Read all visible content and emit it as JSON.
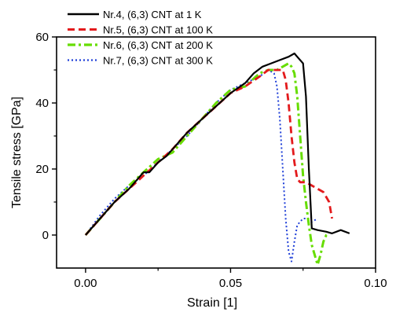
{
  "chart_data": {
    "type": "line",
    "title": "",
    "xlabel": "Strain [1]",
    "ylabel": "Tensile stress [GPa]",
    "xlim": [
      -0.01,
      0.1
    ],
    "ylim": [
      -10,
      60
    ],
    "xticks": [
      0.0,
      0.05,
      0.1
    ],
    "xtick_labels": [
      "0.00",
      "0.05",
      "0.10"
    ],
    "yticks": [
      0,
      20,
      40,
      60
    ],
    "ytick_labels": [
      "0",
      "20",
      "40",
      "60"
    ],
    "grid": false,
    "legend_position": "top",
    "series": [
      {
        "name": "Nr.4, (6,3) CNT at 1 K",
        "color": "#000000",
        "style": "solid",
        "x": [
          0.0,
          0.005,
          0.01,
          0.015,
          0.018,
          0.02,
          0.022,
          0.025,
          0.028,
          0.03,
          0.035,
          0.04,
          0.045,
          0.05,
          0.055,
          0.058,
          0.061,
          0.064,
          0.067,
          0.07,
          0.072,
          0.073,
          0.075,
          0.076,
          0.077,
          0.078,
          0.08,
          0.083,
          0.085,
          0.088,
          0.091
        ],
        "y": [
          0,
          5,
          10,
          14,
          17,
          19,
          19,
          22,
          24,
          26,
          31,
          35,
          39,
          43,
          46,
          49,
          51,
          52,
          53,
          54,
          55,
          54,
          52,
          42,
          20,
          2,
          1.5,
          1,
          0.5,
          1.5,
          0.5
        ]
      },
      {
        "name": "Nr.5, (6,3) CNT at 100 K",
        "color": "#e31a1c",
        "style": "dashed",
        "x": [
          0.0,
          0.005,
          0.01,
          0.015,
          0.02,
          0.025,
          0.03,
          0.035,
          0.04,
          0.045,
          0.05,
          0.055,
          0.06,
          0.063,
          0.066,
          0.068,
          0.069,
          0.07,
          0.071,
          0.072,
          0.073,
          0.074,
          0.076,
          0.078,
          0.08,
          0.082,
          0.084,
          0.085
        ],
        "y": [
          0,
          5,
          10,
          14,
          18,
          22,
          26,
          31,
          35,
          39,
          43,
          45,
          48,
          50,
          50,
          50,
          47,
          40,
          30,
          22,
          17,
          16,
          16,
          15,
          14,
          13,
          10,
          5
        ]
      },
      {
        "name": "Nr.6, (6,3) CNT at 200 K",
        "color": "#66dd00",
        "style": "dashdot",
        "x": [
          0.0,
          0.005,
          0.01,
          0.015,
          0.02,
          0.025,
          0.03,
          0.035,
          0.04,
          0.045,
          0.05,
          0.055,
          0.06,
          0.063,
          0.066,
          0.068,
          0.07,
          0.071,
          0.072,
          0.073,
          0.074,
          0.075,
          0.076,
          0.077,
          0.078,
          0.079,
          0.08,
          0.081,
          0.082,
          0.083,
          0.084
        ],
        "y": [
          0,
          5,
          10,
          15,
          19,
          23,
          25,
          30,
          35,
          40,
          44,
          45,
          49,
          50,
          50,
          51,
          52,
          51,
          49,
          42,
          30,
          18,
          10,
          3,
          -3,
          -6,
          -9,
          -6,
          -2,
          0,
          0
        ]
      },
      {
        "name": "Nr.7, (6,3) CNT at 300 K",
        "color": "#1f3fd8",
        "style": "dotted",
        "x": [
          0.0,
          0.005,
          0.01,
          0.015,
          0.02,
          0.025,
          0.03,
          0.035,
          0.04,
          0.045,
          0.05,
          0.055,
          0.06,
          0.063,
          0.065,
          0.066,
          0.067,
          0.068,
          0.069,
          0.07,
          0.071,
          0.072,
          0.073,
          0.074,
          0.075,
          0.076,
          0.078,
          0.08
        ],
        "y": [
          0,
          6,
          11,
          15,
          18,
          22,
          26,
          30,
          35,
          40,
          44,
          46,
          48,
          50,
          49,
          45,
          35,
          20,
          5,
          -5,
          -8,
          -2,
          3,
          4,
          5,
          5,
          4,
          5
        ]
      }
    ]
  }
}
